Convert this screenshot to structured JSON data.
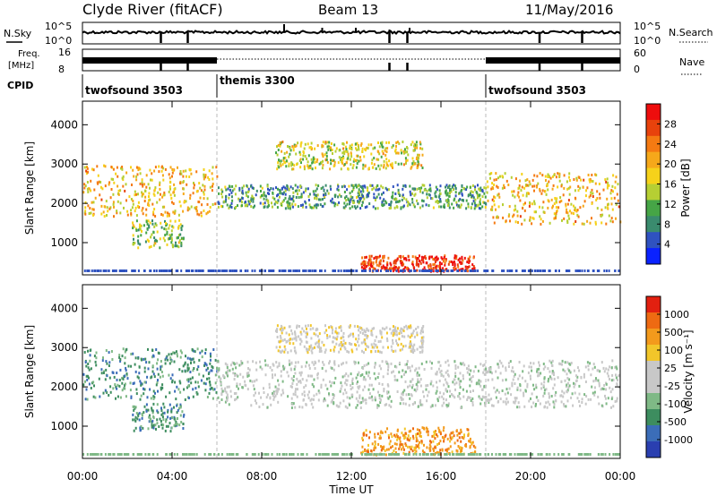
{
  "header": {
    "station": "Clyde River (fitACF)",
    "beam": "Beam 13",
    "date": "11/May/2016"
  },
  "strips": {
    "nsky_label": "N.Sky",
    "nsky_ticks": [
      "10^5",
      "10^0"
    ],
    "nsearch_label": "N.Search",
    "nsearch_ticks": [
      "10^5",
      "10^0"
    ],
    "freq_label_1": "Freq.",
    "freq_label_2": "[MHz]",
    "freq_ticks": [
      "16",
      "8"
    ],
    "nave_label": "Nave",
    "nave_ticks": [
      "60",
      "0"
    ],
    "cpid_label": "CPID",
    "modes": [
      {
        "name": "twofsound 3503",
        "start": 0,
        "end": 6
      },
      {
        "name": "themis 3300",
        "start": 6,
        "end": 18
      },
      {
        "name": "twofsound 3503",
        "start": 18,
        "end": 24
      }
    ]
  },
  "chart_data": [
    {
      "type": "heatmap",
      "panel": "power",
      "ylabel": "Slant Range [km]",
      "yticks": [
        "1000",
        "2000",
        "3000",
        "4000"
      ],
      "ylim": [
        180,
        4600
      ],
      "xlim": [
        0,
        24
      ],
      "colorbar_label": "Power [dB]",
      "colorbar_ticks": [
        "28",
        "24",
        "20",
        "16",
        "12",
        "8",
        "4"
      ],
      "colorbar_colors": [
        "#0a22ff",
        "#2f52c0",
        "#3a8b6e",
        "#46a546",
        "#b6cf33",
        "#f6d21a",
        "#f6a81a",
        "#f57a12",
        "#e8420c",
        "#ee0d0d"
      ],
      "echo_regions": [
        {
          "t0": 0.0,
          "t1": 6.0,
          "r0": 1700,
          "r1": 3000,
          "level": 6
        },
        {
          "t0": 2.2,
          "t1": 4.5,
          "r0": 900,
          "r1": 1600,
          "level": 4
        },
        {
          "t0": 6.0,
          "t1": 18.0,
          "r0": 1900,
          "r1": 2500,
          "level": 3
        },
        {
          "t0": 12.4,
          "t1": 17.5,
          "r0": 300,
          "r1": 700,
          "level": 9
        },
        {
          "t0": 18.0,
          "t1": 24.0,
          "r0": 1500,
          "r1": 2800,
          "level": 6
        },
        {
          "t0": 8.6,
          "t1": 15.2,
          "r0": 2900,
          "r1": 3600,
          "level": 5
        }
      ]
    },
    {
      "type": "heatmap",
      "panel": "velocity",
      "ylabel": "Slant Range [km]",
      "yticks": [
        "1000",
        "2000",
        "3000",
        "4000"
      ],
      "ylim": [
        180,
        4600
      ],
      "xlim": [
        0,
        24
      ],
      "xticks": [
        "00:00",
        "04:00",
        "08:00",
        "12:00",
        "16:00",
        "20:00",
        "00:00"
      ],
      "xlabel": "Time UT",
      "colorbar_label": "Velocity [m s⁻¹]",
      "colorbar_ticks": [
        "1000",
        "500",
        "100",
        "25",
        "-25",
        "-100",
        "-500",
        "-1000"
      ],
      "colorbar_colors": [
        "#2a3fb0",
        "#3b6db8",
        "#3d8d5f",
        "#7fb986",
        "#c8c8c8",
        "#c8c8c8",
        "#f2c62a",
        "#f39a1c",
        "#ee6a12",
        "#e22010"
      ],
      "echo_regions": [
        {
          "t0": 0.0,
          "t1": 6.0,
          "r0": 1700,
          "r1": 3000,
          "level": 1
        },
        {
          "t0": 2.2,
          "t1": 4.5,
          "r0": 900,
          "r1": 1600,
          "level": 2
        },
        {
          "t0": 6.0,
          "t1": 24.0,
          "r0": 1500,
          "r1": 2700,
          "level": 0
        },
        {
          "t0": 12.4,
          "t1": 17.5,
          "r0": 300,
          "r1": 1000,
          "level": -2
        },
        {
          "t0": 8.6,
          "t1": 15.2,
          "r0": 2900,
          "r1": 3600,
          "level": -1
        }
      ]
    }
  ]
}
